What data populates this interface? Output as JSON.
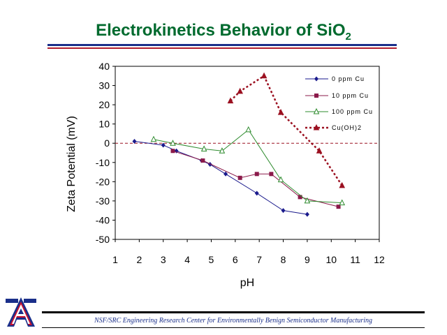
{
  "slide": {
    "title_main": "Electrokinetics Behavior of SiO",
    "title_sub": "2",
    "footer": "NSF/SRC Engineering Research Center for Environmentally Benign Semiconductor Manufacturing"
  },
  "colors": {
    "title": "#006a2e",
    "rule_blue": "#1a2f8a",
    "rule_red": "#b01e2e",
    "logo_blue": "#1a2f8a",
    "logo_red": "#c8102e"
  },
  "chart_data": {
    "type": "line",
    "xlabel": "pH",
    "ylabel": "Zeta Potential (mV)",
    "xlim": [
      1,
      12
    ],
    "ylim": [
      -50,
      40
    ],
    "xticks": [
      1,
      2,
      3,
      4,
      5,
      6,
      7,
      8,
      9,
      10,
      11,
      12
    ],
    "yticks": [
      40,
      30,
      20,
      10,
      0,
      -10,
      -20,
      -30,
      -40,
      -50
    ],
    "zero_line": true,
    "grid": false,
    "legend_position": "top-right",
    "series": [
      {
        "name": "0 ppm Cu",
        "color": "#1a1a8c",
        "marker": "diamond",
        "line": "solid",
        "x": [
          1.8,
          3.0,
          3.55,
          4.6,
          4.95,
          5.6,
          6.9,
          8.0,
          9.0
        ],
        "y": [
          1,
          -1,
          -4,
          -9,
          -11,
          -16,
          -26,
          -35,
          -37
        ]
      },
      {
        "name": "10 ppm Cu",
        "color": "#8b1a4a",
        "marker": "square",
        "line": "solid",
        "x": [
          3.4,
          4.65,
          6.2,
          6.9,
          7.5,
          8.7,
          10.3
        ],
        "y": [
          -4,
          -9,
          -18,
          -16,
          -16,
          -28,
          -33
        ]
      },
      {
        "name": "100 ppm Cu",
        "color": "#2e8b2e",
        "marker": "triangle",
        "line": "solid",
        "x": [
          2.6,
          3.4,
          4.7,
          5.45,
          6.55,
          7.9,
          9.0,
          10.45
        ],
        "y": [
          2,
          0,
          -3,
          -4,
          7,
          -19,
          -30,
          -31
        ]
      },
      {
        "name": "Cu(OH)2",
        "color": "#9b1020",
        "marker": "triangle",
        "line": "dotted",
        "x": [
          5.8,
          6.2,
          7.2,
          7.9,
          9.5,
          10.45
        ],
        "y": [
          22,
          27,
          35,
          16,
          -4,
          -22
        ]
      }
    ]
  }
}
